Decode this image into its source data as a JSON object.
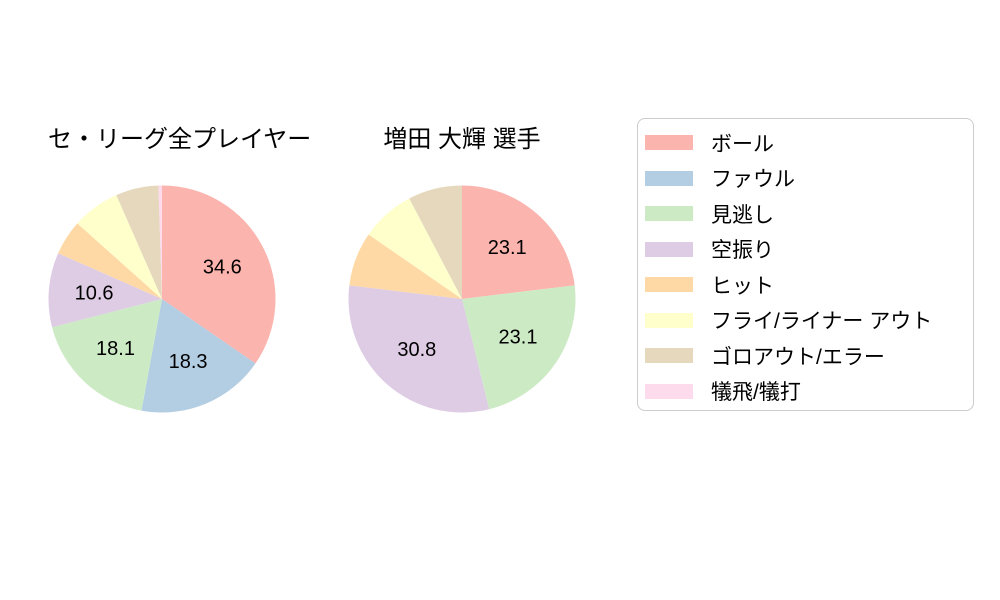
{
  "page": {
    "background": "#ffffff"
  },
  "legend": {
    "border_color": "#cccccc",
    "items": [
      {
        "label": "ボール",
        "color": "#fbb4ae"
      },
      {
        "label": "ファウル",
        "color": "#b3cde3"
      },
      {
        "label": "見逃し",
        "color": "#ccebc5"
      },
      {
        "label": "空振り",
        "color": "#decbe4"
      },
      {
        "label": "ヒット",
        "color": "#fed9a6"
      },
      {
        "label": "フライ/ライナー アウト",
        "color": "#ffffcc"
      },
      {
        "label": "ゴロアウト/エラー",
        "color": "#e5d8bd"
      },
      {
        "label": "犠飛/犠打",
        "color": "#fddaec"
      }
    ]
  },
  "chart_data": [
    {
      "type": "pie",
      "title": "セ・リーグ全プレイヤー",
      "categories": [
        "ボール",
        "ファウル",
        "見逃し",
        "空振り",
        "ヒット",
        "フライ/ライナー アウト",
        "ゴロアウト/エラー",
        "犠飛/犠打"
      ],
      "values": [
        34.6,
        18.3,
        18.1,
        10.6,
        5.0,
        6.8,
        6.1,
        0.5
      ],
      "displayed_value_labels": [
        "34.6",
        "18.3",
        "18.1",
        "10.6"
      ],
      "colors": [
        "#fbb4ae",
        "#b3cde3",
        "#ccebc5",
        "#decbe4",
        "#fed9a6",
        "#ffffcc",
        "#e5d8bd",
        "#fddaec"
      ],
      "start_angle_deg": 90,
      "direction": "clockwise",
      "label_min": 10,
      "label_radius_frac": 0.6,
      "legend_position": "right"
    },
    {
      "type": "pie",
      "title": "増田 大輝 選手",
      "categories": [
        "ボール",
        "ファウル",
        "見逃し",
        "空振り",
        "ヒット",
        "フライ/ライナー アウト",
        "ゴロアウト/エラー",
        "犠飛/犠打"
      ],
      "values": [
        23.1,
        0,
        23.1,
        30.8,
        7.7,
        7.7,
        7.7,
        0
      ],
      "displayed_value_labels": [
        "23.1",
        "23.1",
        "30.8"
      ],
      "colors": [
        "#fbb4ae",
        "#b3cde3",
        "#ccebc5",
        "#decbe4",
        "#fed9a6",
        "#ffffcc",
        "#e5d8bd",
        "#fddaec"
      ],
      "start_angle_deg": 90,
      "direction": "clockwise",
      "label_min": 10,
      "label_radius_frac": 0.6,
      "legend_position": "right"
    }
  ]
}
